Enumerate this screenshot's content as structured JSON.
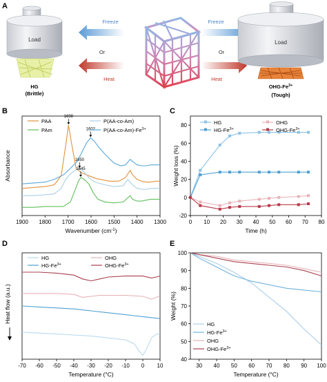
{
  "panelA": {
    "letter": "A",
    "load_left": "Load",
    "load_right": "Load",
    "freeze_left": "Freeze",
    "freeze_right": "Freeze",
    "or_left": "Or",
    "or_right": "Or",
    "heat_left": "Heat",
    "heat_right": "Heat",
    "hg_label": "HG",
    "hg_sub": "(Brittle)",
    "ohg_label": "OHG-Fe",
    "ohg_sup": "3+",
    "ohg_sub": "(Tough)",
    "colors": {
      "freeze_arrow": "#5b9bd5",
      "heat_arrow": "#c0392b",
      "hg_gel": "#d8e88a",
      "ohg_gel": "#e07a2a"
    }
  },
  "chart_data": [
    {
      "panel": "B",
      "type": "line",
      "xlabel": "Wavenumber (cm",
      "xlabel_sup": "-1",
      "xlabel_end": ")",
      "ylabel": "Absorbance",
      "xlim": [
        1900,
        1300
      ],
      "x_ticks": [
        "1900",
        "1800",
        "1700",
        "1600",
        "1500",
        "1400",
        "1300"
      ],
      "legend": [
        "PAA",
        "PAm",
        "P(AA-co-Am)",
        "P(AA-co-Am)-Fe"
      ],
      "legend_sup": "3+",
      "annotations": [
        "1698",
        "1602",
        "1650",
        "1645"
      ],
      "series": [
        {
          "name": "PAA",
          "color": "#e0923a",
          "x": [
            1900,
            1850,
            1800,
            1760,
            1730,
            1710,
            1698,
            1685,
            1665,
            1640,
            1620,
            1600,
            1580,
            1560,
            1520,
            1480,
            1450,
            1430,
            1420,
            1400,
            1380,
            1360,
            1340,
            1320,
            1300
          ],
          "y": [
            0.3,
            0.31,
            0.32,
            0.34,
            0.44,
            0.78,
            1.0,
            0.8,
            0.52,
            0.47,
            0.45,
            0.43,
            0.41,
            0.4,
            0.38,
            0.38,
            0.42,
            0.5,
            0.45,
            0.4,
            0.38,
            0.37,
            0.37,
            0.38,
            0.38
          ]
        },
        {
          "name": "PAm",
          "color": "#5fbf5a",
          "x": [
            1900,
            1850,
            1800,
            1760,
            1720,
            1690,
            1670,
            1655,
            1645,
            1630,
            1610,
            1590,
            1570,
            1540,
            1500,
            1460,
            1430,
            1420,
            1400,
            1380,
            1360,
            1340,
            1320,
            1300
          ],
          "y": [
            0.09,
            0.09,
            0.1,
            0.1,
            0.1,
            0.15,
            0.28,
            0.38,
            0.42,
            0.4,
            0.35,
            0.25,
            0.18,
            0.15,
            0.14,
            0.15,
            0.22,
            0.18,
            0.16,
            0.16,
            0.17,
            0.18,
            0.18,
            0.18
          ]
        },
        {
          "name": "P(AA-co-Am)",
          "color": "#a9cfe8",
          "x": [
            1900,
            1850,
            1800,
            1760,
            1730,
            1710,
            1690,
            1670,
            1650,
            1630,
            1610,
            1590,
            1570,
            1540,
            1500,
            1460,
            1440,
            1420,
            1400,
            1380,
            1360,
            1340,
            1320,
            1300
          ],
          "y": [
            0.22,
            0.22,
            0.23,
            0.24,
            0.3,
            0.4,
            0.46,
            0.5,
            0.52,
            0.48,
            0.42,
            0.38,
            0.36,
            0.34,
            0.32,
            0.33,
            0.4,
            0.34,
            0.3,
            0.29,
            0.29,
            0.3,
            0.3,
            0.3
          ]
        },
        {
          "name": "P(AA-co-Am)-Fe",
          "color": "#5aa6d8",
          "x": [
            1900,
            1850,
            1800,
            1760,
            1720,
            1690,
            1660,
            1640,
            1620,
            1602,
            1585,
            1565,
            1540,
            1500,
            1470,
            1450,
            1430,
            1410,
            1400,
            1380,
            1360,
            1340,
            1320,
            1300
          ],
          "y": [
            0.35,
            0.36,
            0.37,
            0.4,
            0.45,
            0.52,
            0.6,
            0.7,
            0.8,
            0.86,
            0.82,
            0.75,
            0.68,
            0.58,
            0.55,
            0.56,
            0.62,
            0.58,
            0.56,
            0.55,
            0.55,
            0.56,
            0.56,
            0.56
          ]
        }
      ]
    },
    {
      "panel": "C",
      "type": "line",
      "xlabel": "Time (h)",
      "ylabel": "Weight loss (%)",
      "xlim": [
        0,
        80
      ],
      "ylim": [
        -20,
        90
      ],
      "x_ticks": [
        "0",
        "10",
        "20",
        "30",
        "40",
        "50",
        "60",
        "70",
        "80"
      ],
      "y_ticks": [
        "-20",
        "0",
        "20",
        "40",
        "60",
        "80"
      ],
      "legend": [
        "HG",
        "HG-Fe",
        "OHG",
        "OHG-Fe"
      ],
      "legend_sup": "3+",
      "x": [
        0,
        6,
        18,
        24,
        30,
        42,
        48,
        54,
        66,
        72
      ],
      "series": [
        {
          "name": "HG",
          "color": "#8cc3e6",
          "values": [
            0,
            30,
            58,
            68,
            71,
            72,
            72,
            72,
            72,
            72
          ]
        },
        {
          "name": "HG-Fe",
          "color": "#4fa0d4",
          "values": [
            0,
            25,
            28,
            28,
            28,
            28,
            28,
            28,
            28,
            28
          ]
        },
        {
          "name": "OHG",
          "color": "#e7b3b8",
          "values": [
            0,
            -5,
            -9,
            -6,
            -4,
            -2,
            -1,
            0,
            1,
            2
          ]
        },
        {
          "name": "OHG-Fe",
          "color": "#b83a4a",
          "values": [
            0,
            -9,
            -13,
            -11,
            -10,
            -10,
            -9,
            -8,
            -8,
            -7
          ]
        }
      ]
    },
    {
      "panel": "D",
      "type": "line",
      "xlabel": "Temperature (°C)",
      "ylabel": "Heat flow (a.u.)",
      "xlim": [
        -70,
        10
      ],
      "x_ticks": [
        "-70",
        "-60",
        "-50",
        "-40",
        "-30",
        "-20",
        "-10",
        "0",
        "10"
      ],
      "legend": [
        "HG",
        "HG-Fe",
        "OHG",
        "OHG-Fe"
      ],
      "legend_sup": "3+",
      "series": [
        {
          "name": "HG",
          "color": "#b9d9ee",
          "x": [
            -70,
            -60,
            -50,
            -40,
            -30,
            -20,
            -10,
            -5,
            -2,
            0,
            2,
            5,
            8,
            10
          ],
          "y": [
            0.28,
            0.27,
            0.26,
            0.25,
            0.24,
            0.22,
            0.2,
            0.16,
            0.08,
            0.04,
            0.1,
            0.22,
            0.26,
            0.27
          ]
        },
        {
          "name": "HG-Fe",
          "color": "#4fa0d4",
          "x": [
            -70,
            -60,
            -50,
            -40,
            -30,
            -20,
            -10,
            -5,
            0,
            5,
            10
          ],
          "y": [
            0.55,
            0.54,
            0.53,
            0.52,
            0.5,
            0.48,
            0.46,
            0.45,
            0.44,
            0.43,
            0.42
          ]
        },
        {
          "name": "OHG",
          "color": "#e7b3b8",
          "x": [
            -70,
            -60,
            -50,
            -40,
            -35,
            -30,
            -25,
            -20,
            -10,
            0,
            5,
            8,
            10
          ],
          "y": [
            0.68,
            0.68,
            0.68,
            0.67,
            0.64,
            0.65,
            0.66,
            0.66,
            0.66,
            0.65,
            0.62,
            0.64,
            0.66
          ]
        },
        {
          "name": "OHG-Fe",
          "color": "#a84050",
          "x": [
            -70,
            -60,
            -50,
            -40,
            -35,
            -30,
            -25,
            -20,
            -10,
            0,
            5,
            8,
            10
          ],
          "y": [
            0.9,
            0.9,
            0.89,
            0.87,
            0.83,
            0.81,
            0.83,
            0.85,
            0.86,
            0.86,
            0.84,
            0.85,
            0.86
          ]
        }
      ]
    },
    {
      "panel": "E",
      "type": "line",
      "xlabel": "Temperature (°C)",
      "ylabel": "Weight (%)",
      "xlim": [
        25,
        100
      ],
      "ylim": [
        40,
        100
      ],
      "x_ticks": [
        "30",
        "40",
        "50",
        "60",
        "70",
        "80",
        "90",
        "100"
      ],
      "y_ticks": [
        "40",
        "50",
        "60",
        "70",
        "80",
        "90",
        "100"
      ],
      "legend": [
        "HG",
        "HG-Fe",
        "OHG",
        "OHG-Fe"
      ],
      "legend_sup": "3+",
      "series": [
        {
          "name": "HG",
          "color": "#a9cfe8",
          "x": [
            25,
            30,
            40,
            50,
            60,
            70,
            80,
            90,
            100
          ],
          "y": [
            100,
            98,
            94,
            89,
            83,
            75,
            67,
            57,
            48
          ]
        },
        {
          "name": "HG-Fe",
          "color": "#6fb2dd",
          "x": [
            25,
            30,
            40,
            50,
            60,
            70,
            80,
            90,
            100
          ],
          "y": [
            100,
            97,
            92,
            87,
            84,
            82,
            80,
            79,
            78
          ]
        },
        {
          "name": "OHG",
          "color": "#e7b3b8",
          "x": [
            25,
            30,
            40,
            50,
            60,
            70,
            80,
            90,
            100
          ],
          "y": [
            100,
            99,
            98,
            96,
            95,
            94,
            93,
            91,
            89
          ]
        },
        {
          "name": "OHG-Fe",
          "color": "#a84050",
          "x": [
            25,
            30,
            40,
            50,
            60,
            70,
            80,
            90,
            100
          ],
          "y": [
            100,
            99,
            97,
            95,
            94,
            93,
            92,
            90,
            87
          ]
        }
      ]
    }
  ]
}
